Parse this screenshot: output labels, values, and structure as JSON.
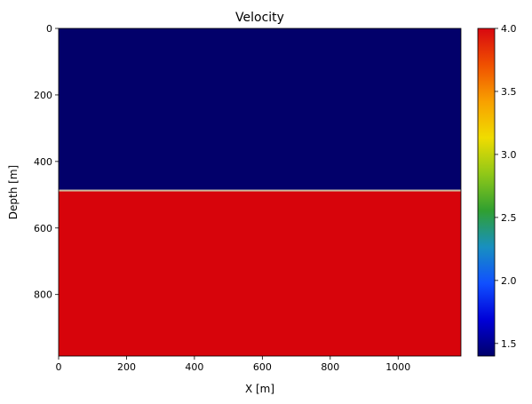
{
  "chart_data": {
    "type": "heatmap",
    "title": "Velocity",
    "xlabel": "X [m]",
    "ylabel": "Depth [m]",
    "xlim": [
      0,
      1185
    ],
    "ylim": [
      985,
      0
    ],
    "x_ticks": [
      0,
      200,
      400,
      600,
      800,
      1000
    ],
    "y_ticks": [
      0,
      200,
      400,
      600,
      800
    ],
    "layers": [
      {
        "depth_top": 0,
        "depth_bottom": 485,
        "value": 1.4
      },
      {
        "depth_top": 485,
        "depth_bottom": 490,
        "value": 2.7
      },
      {
        "depth_top": 490,
        "depth_bottom": 985,
        "value": 4.0
      }
    ],
    "colorbar": {
      "min": 1.4,
      "max": 4.0,
      "ticks": [
        "1.5",
        "2.0",
        "2.5",
        "3.0",
        "3.5",
        "4.0"
      ],
      "colormap": "jet-like",
      "colors": [
        "#00006a",
        "#0000d8",
        "#1050ff",
        "#1890c0",
        "#30a030",
        "#90c818",
        "#f0dc00",
        "#f8a000",
        "#f05000",
        "#d80810"
      ]
    },
    "colors": {
      "low_layer": "#02006a",
      "high_layer": "#d7040b",
      "interface": "#cdbb9a"
    }
  }
}
